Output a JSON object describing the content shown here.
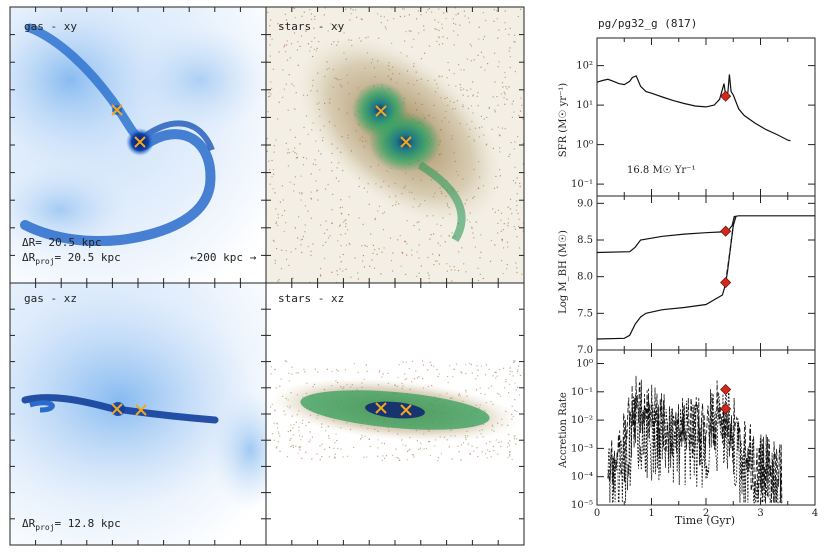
{
  "colors": {
    "gas_light": "#dcebfb",
    "gas_mid": "#5aa2ea",
    "gas_dark": "#0b3f9c",
    "star_brown": "#8a6a2e",
    "star_green": "#2f9a5a",
    "star_core": "#1b3a7a",
    "marker_cross": "#f2a81c",
    "marker_diamond": "#d02a1e"
  },
  "panels": {
    "gas_xy": {
      "label": "gas - xy"
    },
    "stars_xy": {
      "label": "stars - xy"
    },
    "gas_xz": {
      "label": "gas - xz"
    },
    "stars_xz": {
      "label": "stars - xz"
    }
  },
  "annotations": {
    "dR": "ΔR= 20.5 kpc",
    "dRproj_xy_prefix": "ΔR",
    "dRproj_xy_sub": "proj",
    "dRproj_xy_value": "= 20.5 kpc",
    "scale_bar": "←200 kpc →",
    "dRproj_xz_prefix": "ΔR",
    "dRproj_xz_sub": "proj",
    "dRproj_xz_value": "= 12.8 kpc"
  },
  "chart_data": [
    {
      "type": "line",
      "name": "sfr",
      "title": "pg/pg32_g (817)",
      "ylabel": "SFR (M☉ yr⁻¹)",
      "yscale": "log",
      "ylim": [
        0.05,
        500
      ],
      "xlim": [
        0,
        4
      ],
      "ytick_labels": [
        "10⁻¹",
        "10⁰",
        "10¹",
        "10²"
      ],
      "yticks": [
        0.1,
        1,
        10,
        100
      ],
      "annotation": "16.8 M☉ Yr⁻¹",
      "x": [
        0,
        0.1,
        0.2,
        0.3,
        0.4,
        0.5,
        0.6,
        0.65,
        0.72,
        0.8,
        0.9,
        1.0,
        1.2,
        1.4,
        1.6,
        1.8,
        2.0,
        2.15,
        2.25,
        2.3,
        2.33,
        2.36,
        2.4,
        2.43,
        2.46,
        2.5,
        2.55,
        2.6,
        2.7,
        2.9,
        3.1,
        3.3,
        3.5,
        3.55
      ],
      "values": [
        38,
        42,
        45,
        40,
        35,
        33,
        40,
        50,
        55,
        30,
        22,
        20,
        16,
        13,
        11,
        9.5,
        9,
        10,
        14,
        25,
        35,
        18,
        20,
        60,
        22,
        18,
        12,
        8,
        5.5,
        3.5,
        2.4,
        1.8,
        1.3,
        1.25
      ],
      "marker": {
        "x": 2.36,
        "y": 16.8
      }
    },
    {
      "type": "line",
      "name": "bh_mass",
      "ylabel": "Log M_BH (M☉)",
      "ylim": [
        7.0,
        9.1
      ],
      "xlim": [
        0,
        4
      ],
      "yticks": [
        7.0,
        7.5,
        8.0,
        8.5,
        9.0
      ],
      "ytick_labels": [
        "7.0",
        "7.5",
        "8.0",
        "8.5",
        "9.0"
      ],
      "series": [
        {
          "name": "bh1",
          "x": [
            0,
            0.6,
            0.7,
            0.8,
            1.2,
            1.6,
            2.0,
            2.3,
            2.36,
            2.42,
            2.48,
            2.52,
            2.6,
            3.0,
            3.5,
            4.0
          ],
          "values": [
            8.33,
            8.34,
            8.4,
            8.5,
            8.55,
            8.58,
            8.6,
            8.61,
            8.62,
            8.64,
            8.7,
            8.82,
            8.83,
            8.83,
            8.83,
            8.83
          ]
        },
        {
          "name": "bh2",
          "x": [
            0,
            0.5,
            0.6,
            0.7,
            0.8,
            0.9,
            1.2,
            1.6,
            2.0,
            2.3,
            2.36,
            2.4,
            2.45,
            2.5,
            2.55
          ],
          "values": [
            7.15,
            7.16,
            7.2,
            7.35,
            7.45,
            7.5,
            7.55,
            7.58,
            7.62,
            7.75,
            7.9,
            8.1,
            8.4,
            8.7,
            8.82
          ]
        }
      ],
      "markers": [
        {
          "x": 2.36,
          "y": 8.62
        },
        {
          "x": 2.36,
          "y": 7.92
        }
      ]
    },
    {
      "type": "line",
      "name": "accretion",
      "ylabel": "Accretion Rate",
      "xlabel": "Time (Gyr)",
      "yscale": "log",
      "ylim": [
        1e-05,
        3
      ],
      "xlim": [
        0,
        4
      ],
      "yticks": [
        1e-05,
        0.0001,
        0.001,
        0.01,
        0.1,
        1
      ],
      "ytick_labels": [
        "10⁻⁵",
        "10⁻⁴",
        "10⁻³",
        "10⁻²",
        "10⁻¹",
        "10⁰"
      ],
      "xticks": [
        0,
        1,
        2,
        3,
        4
      ],
      "xtick_labels": [
        "0",
        "1",
        "2",
        "3",
        "4"
      ],
      "series": [
        {
          "name": "bh1",
          "envelope_x": [
            0.2,
            0.5,
            0.7,
            0.9,
            1.2,
            1.6,
            2.0,
            2.3,
            2.4,
            2.6,
            2.9,
            3.3
          ],
          "envelope_y": [
            0.003,
            0.02,
            0.4,
            0.2,
            0.15,
            0.1,
            0.08,
            0.5,
            0.2,
            0.03,
            0.005,
            0.002
          ]
        },
        {
          "name": "bh2",
          "envelope_x": [
            0.2,
            0.5,
            0.7,
            0.9,
            1.2,
            1.6,
            2.0,
            2.3,
            2.4,
            2.6,
            2.9,
            3.3
          ],
          "envelope_y": [
            0.001,
            0.01,
            0.2,
            0.1,
            0.08,
            0.05,
            0.05,
            0.3,
            0.3,
            0.01,
            0.003,
            0.001
          ]
        }
      ],
      "markers": [
        {
          "x": 2.36,
          "y": 0.12
        },
        {
          "x": 2.36,
          "y": 0.025
        }
      ]
    }
  ]
}
